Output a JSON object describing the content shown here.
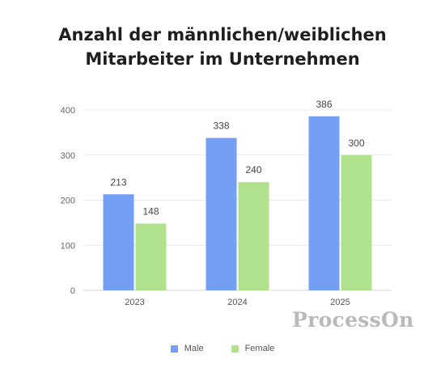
{
  "chart_data": {
    "type": "bar",
    "title": [
      "Anzahl der männlichen/weiblichen",
      "Mitarbeiter im Unternehmen"
    ],
    "categories": [
      "2023",
      "2024",
      "2025"
    ],
    "series": [
      {
        "name": "Male",
        "values": [
          213,
          338,
          386
        ],
        "color": "#739ff5"
      },
      {
        "name": "Female",
        "values": [
          148,
          240,
          300
        ],
        "color": "#b0e18d"
      }
    ],
    "y_ticks": [
      "0",
      "100",
      "200",
      "300",
      "400"
    ],
    "ylim": [
      0,
      400
    ],
    "grid": true,
    "legend": "bottom-center"
  },
  "watermark": "ProcessOn"
}
